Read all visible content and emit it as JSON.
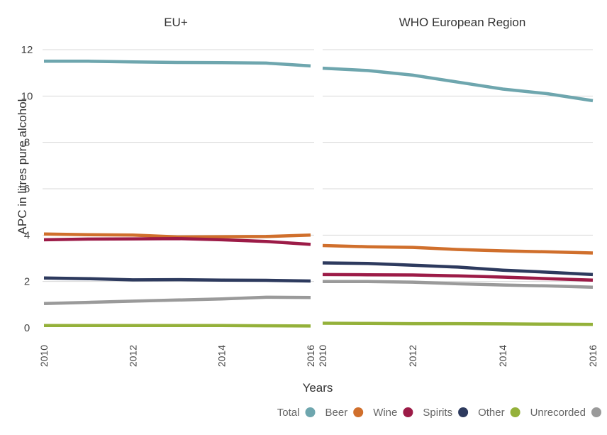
{
  "chart_data": {
    "type": "line",
    "ylabel": "APC in litres pure alcohol",
    "xlabel": "Years",
    "ylim": [
      0,
      12
    ],
    "yticks": [
      0,
      2,
      4,
      6,
      8,
      10,
      12
    ],
    "x_ticks": [
      "2010",
      "2012",
      "2014",
      "2016"
    ],
    "x_range": [
      2010,
      2016
    ],
    "grid": "horizontal",
    "legend_position": "bottom-right",
    "series_styles": [
      {
        "name": "Total",
        "color": "#6ea6ae"
      },
      {
        "name": "Beer",
        "color": "#d06f2c"
      },
      {
        "name": "Wine",
        "color": "#9c1b47"
      },
      {
        "name": "Spirits",
        "color": "#2d3a5e"
      },
      {
        "name": "Other",
        "color": "#94b13a"
      },
      {
        "name": "Unrecorded",
        "color": "#9a9a9a"
      }
    ],
    "panels": [
      {
        "title": "EU+",
        "x": [
          2010,
          2011,
          2012,
          2013,
          2014,
          2015,
          2016
        ],
        "series": [
          {
            "name": "Total",
            "values": [
              11.5,
              11.5,
              11.47,
              11.45,
              11.44,
              11.42,
              11.3
            ]
          },
          {
            "name": "Beer",
            "values": [
              4.05,
              4.02,
              4.0,
              3.92,
              3.93,
              3.94,
              4.0
            ]
          },
          {
            "name": "Wine",
            "values": [
              3.8,
              3.83,
              3.84,
              3.85,
              3.8,
              3.73,
              3.6
            ]
          },
          {
            "name": "Spirits",
            "values": [
              2.15,
              2.12,
              2.07,
              2.08,
              2.06,
              2.05,
              2.02
            ]
          },
          {
            "name": "Other",
            "values": [
              0.1,
              0.1,
              0.1,
              0.1,
              0.1,
              0.09,
              0.08
            ]
          },
          {
            "name": "Unrecorded",
            "values": [
              1.05,
              1.1,
              1.15,
              1.2,
              1.25,
              1.32,
              1.31
            ]
          }
        ]
      },
      {
        "title": "WHO European Region",
        "x": [
          2010,
          2011,
          2012,
          2013,
          2014,
          2015,
          2016
        ],
        "series": [
          {
            "name": "Total",
            "values": [
              11.2,
              11.1,
              10.9,
              10.6,
              10.3,
              10.1,
              9.8
            ]
          },
          {
            "name": "Beer",
            "values": [
              3.55,
              3.5,
              3.47,
              3.38,
              3.32,
              3.28,
              3.23
            ]
          },
          {
            "name": "Wine",
            "values": [
              2.3,
              2.29,
              2.28,
              2.24,
              2.19,
              2.12,
              2.06
            ]
          },
          {
            "name": "Spirits",
            "values": [
              2.8,
              2.78,
              2.7,
              2.62,
              2.49,
              2.4,
              2.3
            ]
          },
          {
            "name": "Other",
            "values": [
              0.2,
              0.19,
              0.18,
              0.18,
              0.17,
              0.16,
              0.15
            ]
          },
          {
            "name": "Unrecorded",
            "values": [
              2.0,
              2.0,
              1.97,
              1.9,
              1.85,
              1.81,
              1.75
            ]
          }
        ]
      }
    ]
  }
}
